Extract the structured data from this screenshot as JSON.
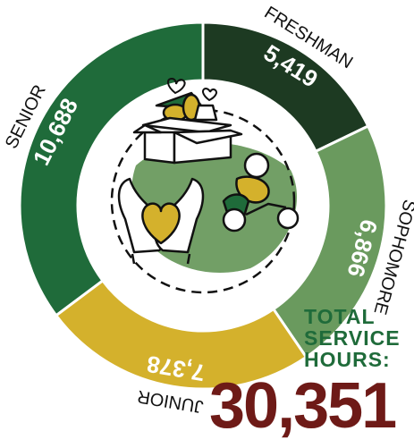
{
  "chart_data": {
    "type": "pie",
    "style": "donut",
    "categories": [
      "FRESHMAN",
      "SOPHOMORE",
      "JUNIOR",
      "SENIOR"
    ],
    "values": [
      5419,
      6866,
      7378,
      10688
    ],
    "value_labels": [
      "5,419",
      "6,866",
      "7,378",
      "10,688"
    ],
    "colors": [
      "#1d3a22",
      "#6a9a5e",
      "#d4b12c",
      "#1f6b3a"
    ],
    "legend": "none"
  },
  "total": {
    "label_lines": [
      "TOTAL",
      "SERVICE",
      "HOURS:"
    ],
    "value": "30,351"
  },
  "icons": {
    "center": [
      "food-donation-box-icon",
      "heart-hands-icon",
      "helping-person-icon"
    ],
    "accent": "#1f6b3a"
  }
}
